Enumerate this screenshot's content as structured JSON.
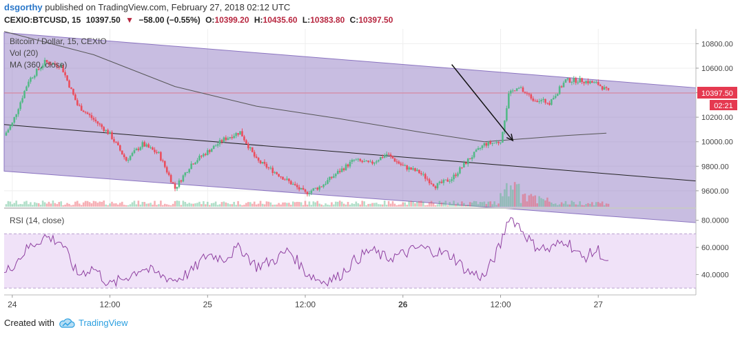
{
  "header": {
    "user": "dsgorthy",
    "published": "published on TradingView.com, February 27, 2018 02:12 UTC"
  },
  "ticker": {
    "symbol": "CEXIO:BTCUSD, 15",
    "last": "10397.50",
    "change": "−58.00 (−0.55%)",
    "o_label": "O:",
    "o": "10399.20",
    "h_label": "H:",
    "h": "10435.60",
    "l_label": "L:",
    "l": "10383.80",
    "c": "10397.50"
  },
  "legend": {
    "title": "Bitcoin / Dollar, 15, CEXIO",
    "vol": "Vol (20)",
    "ma": "MA (360, close)",
    "rsi": "RSI (14, close)"
  },
  "badges": {
    "price": "10397.50",
    "timer": "02:21"
  },
  "footer": {
    "created": "Created with",
    "brand": "TradingView"
  },
  "colors": {
    "up": "#53b987",
    "down": "#eb4d5c",
    "channel": "#9b86c8",
    "rsi_band": "#e9d6f5",
    "rsi_line": "#8e3fa0",
    "ma": "#555555",
    "trend": "#222222",
    "price_badge": "#e53950"
  },
  "chart_data": [
    {
      "type": "candlestick",
      "title": "Bitcoin / Dollar, 15, CEXIO",
      "ylim": [
        9470,
        10920
      ],
      "yticks": [
        "10800.00",
        "10600.00",
        "10400.00",
        "10200.00",
        "10000.00",
        "9800.00",
        "9600.00"
      ],
      "ytick_values": [
        10800,
        10600,
        10400,
        10200,
        10000,
        9800,
        9600
      ],
      "xticks": [
        "24",
        "12:00",
        "25",
        "12:00",
        "26",
        "12:00",
        "27"
      ],
      "xlim_hours": [
        -1,
        84
      ],
      "xtick_hours": [
        0,
        12,
        24,
        36,
        48,
        60,
        72
      ],
      "anchors_hours": [
        -1,
        0,
        2,
        4,
        6,
        8,
        11,
        12,
        14,
        16,
        18,
        20,
        22,
        24,
        26,
        28,
        30,
        33,
        36,
        38,
        40,
        42,
        44,
        46,
        48,
        50,
        52,
        54,
        56,
        58,
        60,
        61,
        62,
        64,
        66,
        68,
        70,
        72,
        73.4
      ],
      "anchors_price": [
        10050,
        10150,
        10500,
        10650,
        10620,
        10300,
        10120,
        10060,
        9850,
        9980,
        9900,
        9620,
        9820,
        9920,
        10020,
        10080,
        9850,
        9720,
        9580,
        9640,
        9750,
        9850,
        9820,
        9900,
        9800,
        9750,
        9640,
        9700,
        9850,
        9980,
        10000,
        10380,
        10450,
        10350,
        10320,
        10500,
        10500,
        10470,
        10397.5
      ],
      "last_price": 10397.5,
      "resistance_line": {
        "from": [
          -1,
          10890
        ],
        "to": [
          84,
          10440
        ]
      },
      "support_line": {
        "from": [
          -1,
          10140
        ],
        "to": [
          84,
          9680
        ]
      },
      "lower_channel": {
        "from": [
          -1,
          9760
        ],
        "to": [
          84,
          9340
        ]
      },
      "ma_360": {
        "hours": [
          -1,
          10,
          20,
          30,
          40,
          50,
          58,
          62,
          68,
          73
        ],
        "values": [
          10900,
          10710,
          10450,
          10290,
          10190,
          10080,
          10000,
          10020,
          10050,
          10070
        ]
      },
      "arrow": {
        "from": [
          54,
          10630
        ],
        "to": [
          61.5,
          10010
        ]
      }
    },
    {
      "type": "bar",
      "name": "Vol (20)",
      "description": "volume histogram at the bottom of the price pane, spike near 12:00 Feb 26"
    },
    {
      "type": "line",
      "title": "RSI (14, close)",
      "ylim": [
        26,
        88
      ],
      "yticks": [
        "80.0000",
        "60.0000",
        "40.0000"
      ],
      "ytick_values": [
        80,
        60,
        40
      ],
      "band": [
        30,
        70
      ],
      "anchors_hours": [
        -1,
        2,
        4,
        6,
        8,
        10,
        12,
        14,
        16,
        18,
        20,
        22,
        24,
        26,
        28,
        30,
        32,
        34,
        36,
        38,
        40,
        42,
        44,
        46,
        48,
        50,
        52,
        54,
        56,
        58,
        59,
        60,
        61,
        62,
        64,
        66,
        68,
        70,
        72,
        73.4
      ],
      "anchors_values": [
        40,
        60,
        68,
        64,
        40,
        45,
        32,
        38,
        45,
        40,
        36,
        42,
        55,
        52,
        60,
        46,
        50,
        58,
        42,
        35,
        38,
        50,
        58,
        52,
        55,
        60,
        57,
        54,
        42,
        38,
        50,
        62,
        83,
        78,
        62,
        58,
        66,
        52,
        58,
        45
      ]
    }
  ]
}
